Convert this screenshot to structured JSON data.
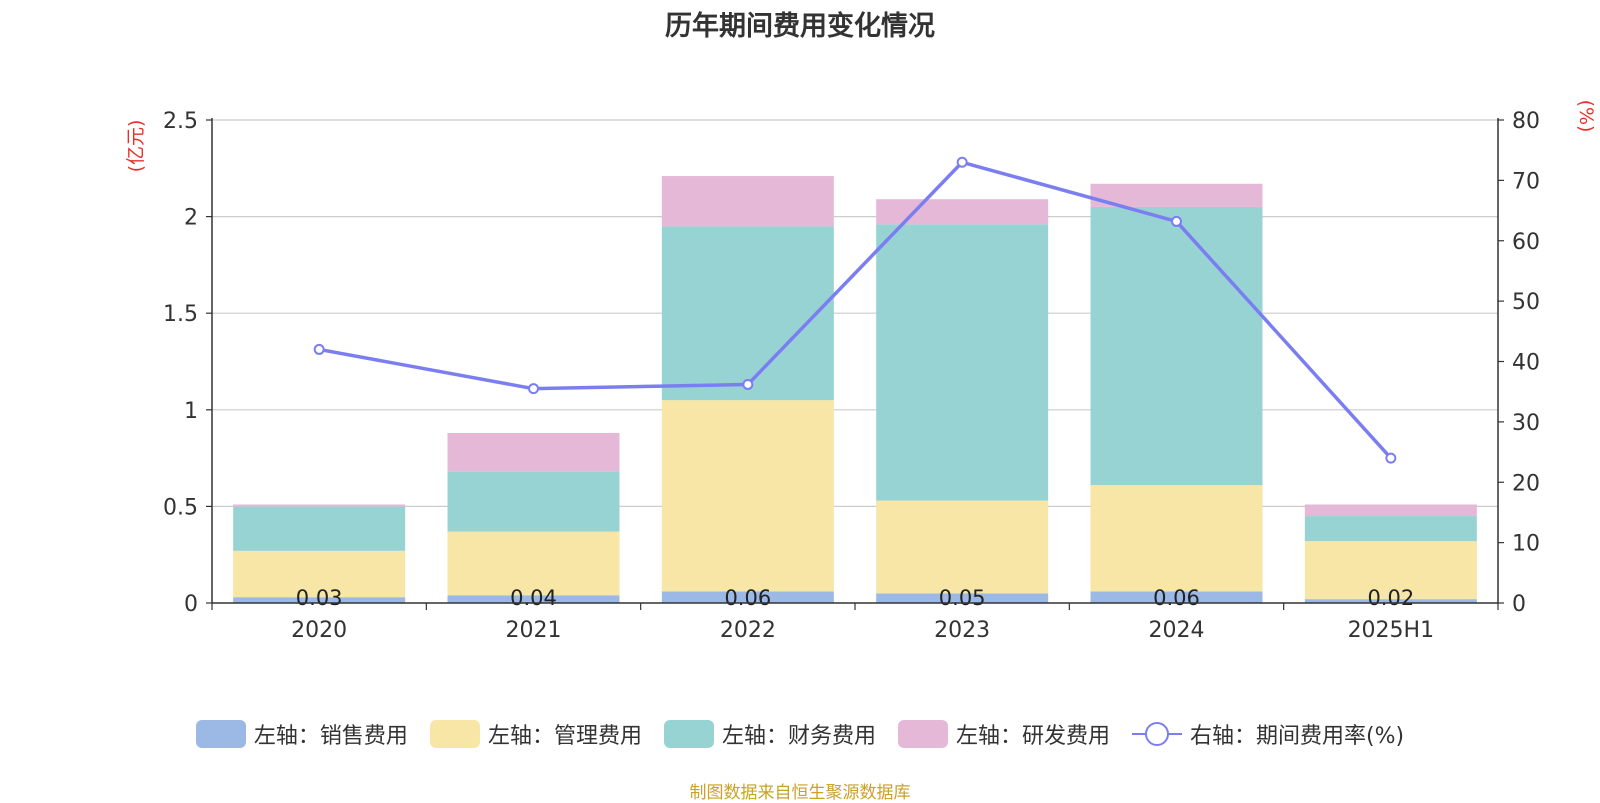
{
  "title": "历年期间费用变化情况",
  "source": "制图数据来自恒生聚源数据库",
  "colors": {
    "sales": "#9cb8e4",
    "admin": "#f7e6a5",
    "finance": "#98d3d4",
    "rd": "#e6b8d8",
    "line": "#7b7ef1",
    "axis_label": "#e8302a",
    "source": "#c9a227"
  },
  "chart_data": {
    "type": "bar",
    "stacked": true,
    "categories": [
      "2020",
      "2021",
      "2022",
      "2023",
      "2024",
      "2025H1"
    ],
    "y_left": {
      "unit_label": "(亿元)",
      "range": [
        0,
        2.5
      ],
      "ticks": [
        "0",
        "0.5",
        "1",
        "1.5",
        "2",
        "2.5"
      ]
    },
    "y_right": {
      "unit_label": "(%)",
      "range": [
        0,
        80
      ],
      "ticks": [
        "0",
        "10",
        "20",
        "30",
        "40",
        "50",
        "60",
        "70",
        "80"
      ]
    },
    "series": [
      {
        "name": "左轴：销售费用",
        "key": "sales",
        "values": [
          0.03,
          0.04,
          0.06,
          0.05,
          0.06,
          0.02
        ],
        "labels": [
          "0.03",
          "0.04",
          "0.06",
          "0.05",
          "0.06",
          "0.02"
        ]
      },
      {
        "name": "左轴：管理费用",
        "key": "admin",
        "values": [
          0.24,
          0.33,
          0.99,
          0.48,
          0.55,
          0.3
        ]
      },
      {
        "name": "左轴：财务费用",
        "key": "finance",
        "values": [
          0.23,
          0.31,
          0.9,
          1.43,
          1.44,
          0.13
        ]
      },
      {
        "name": "左轴：研发费用",
        "key": "rd",
        "values": [
          0.01,
          0.2,
          0.26,
          0.13,
          0.12,
          0.06
        ]
      }
    ],
    "line_series": {
      "name": "右轴：期间费用率(%)",
      "key": "line",
      "values": [
        42.0,
        35.5,
        36.2,
        73.0,
        63.2,
        24.0
      ]
    },
    "grid": true,
    "legend": "bottom"
  }
}
